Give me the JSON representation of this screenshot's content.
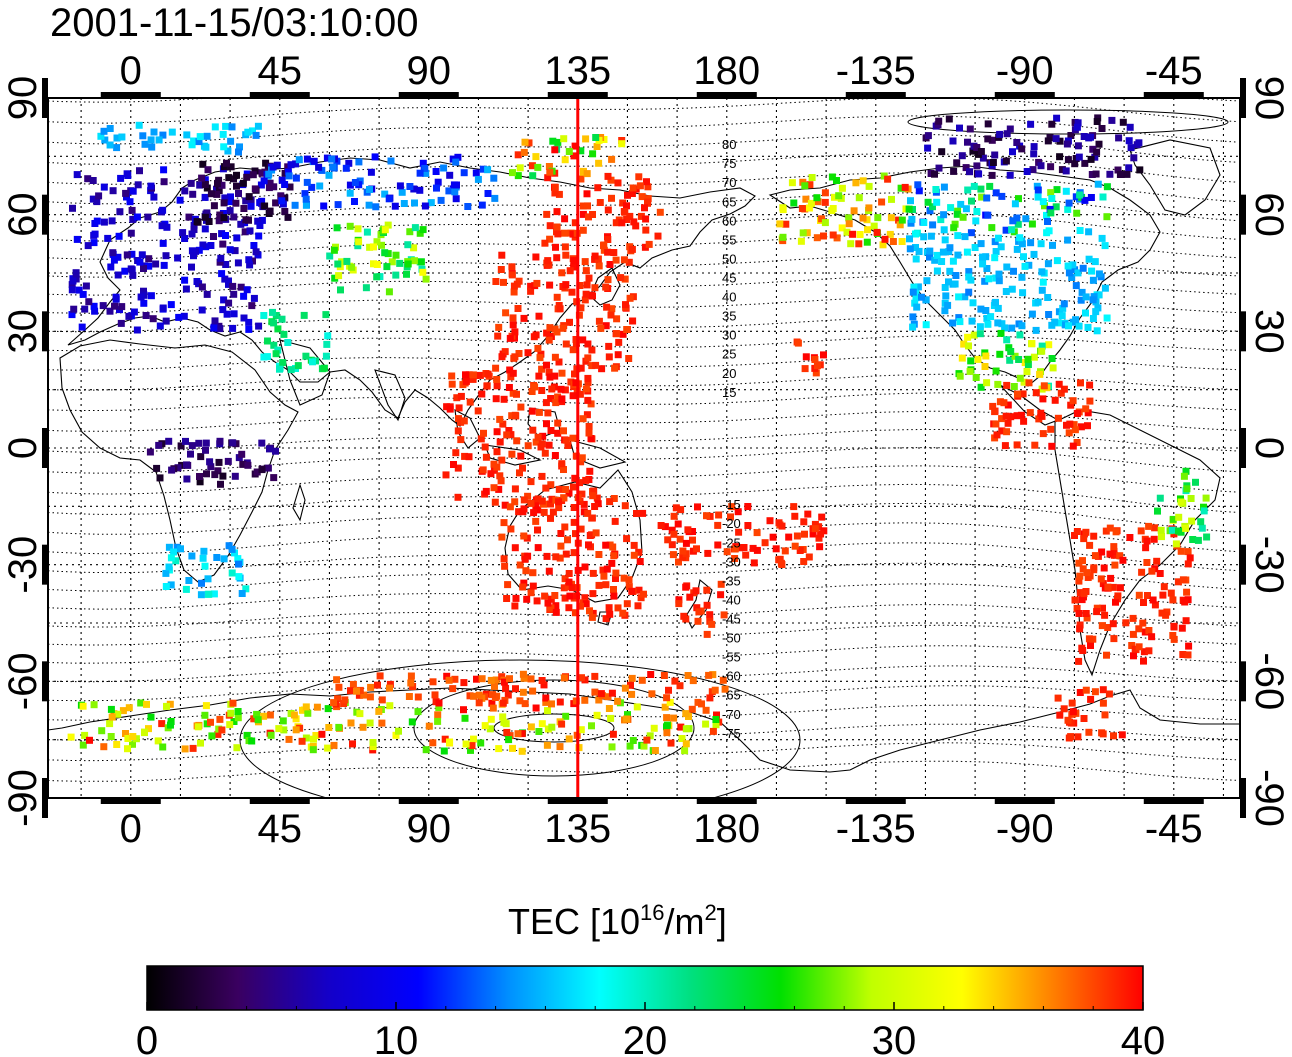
{
  "timestamp": "2001-11-15/03:10:00",
  "map": {
    "projection": "equirectangular",
    "lon_ticks": [
      0,
      45,
      90,
      135,
      180,
      -135,
      -90,
      -45
    ],
    "lat_ticks": [
      90,
      60,
      30,
      0,
      -30,
      -60,
      -90
    ],
    "lon_range": [
      -25,
      335
    ],
    "lat_range": [
      -90,
      90
    ],
    "grid": "dotted every 15 degrees",
    "marker_line_longitude": 135,
    "marker_line_color": "#ff0000",
    "magnetic_latitude_labels": [
      "80",
      "75",
      "70",
      "65",
      "60",
      "55",
      "50",
      "45",
      "40",
      "35",
      "30",
      "25",
      "20",
      "15",
      "-15",
      "-20",
      "-25",
      "-30",
      "-35",
      "-40",
      "-45",
      "-50",
      "-55",
      "-60",
      "-65",
      "-70",
      "-75"
    ]
  },
  "colorbar": {
    "title_prefix": "TEC  [10",
    "title_exp1": "16",
    "title_mid": "/m",
    "title_exp2": "2",
    "title_suffix": "]",
    "min": 0,
    "max": 40,
    "tick_labels": [
      "0",
      "10",
      "20",
      "30",
      "40"
    ],
    "colors": [
      "#000000",
      "#3a0060",
      "#1400c8",
      "#0000ff",
      "#0090ff",
      "#00ffff",
      "#00e080",
      "#00e000",
      "#c0ff00",
      "#ffff00",
      "#ff8000",
      "#ff0000"
    ]
  },
  "tec_regions": [
    {
      "name": "europe",
      "lon": [
        -18,
        40
      ],
      "lat": [
        30,
        72
      ],
      "tec": [
        4,
        11
      ]
    },
    {
      "name": "scandinavia-russia",
      "lon": [
        20,
        50
      ],
      "lat": [
        58,
        75
      ],
      "tec": [
        1,
        4
      ]
    },
    {
      "name": "arctic-north-europe",
      "lon": [
        -10,
        40
      ],
      "lat": [
        76,
        83
      ],
      "tec": [
        14,
        18
      ]
    },
    {
      "name": "central-asia",
      "lon": [
        60,
        90
      ],
      "lat": [
        40,
        58
      ],
      "tec": [
        20,
        33
      ]
    },
    {
      "name": "russia-north",
      "lon": [
        40,
        110
      ],
      "lat": [
        62,
        75
      ],
      "tec": [
        8,
        16
      ]
    },
    {
      "name": "east-asia",
      "lon": [
        110,
        152
      ],
      "lat": [
        20,
        50
      ],
      "tec": [
        38,
        40
      ]
    },
    {
      "name": "japan-north",
      "lon": [
        125,
        160
      ],
      "lat": [
        50,
        70
      ],
      "tec": [
        38,
        40
      ]
    },
    {
      "name": "siberia-arctic",
      "lon": [
        115,
        150
      ],
      "lat": [
        70,
        80
      ],
      "tec": [
        22,
        40
      ]
    },
    {
      "name": "southeast-asia",
      "lon": [
        95,
        140
      ],
      "lat": [
        -15,
        20
      ],
      "tec": [
        38,
        40
      ]
    },
    {
      "name": "australia",
      "lon": [
        112,
        155
      ],
      "lat": [
        -44,
        -12
      ],
      "tec": [
        38,
        40
      ]
    },
    {
      "name": "new-zealand",
      "lon": [
        165,
        180
      ],
      "lat": [
        -48,
        -35
      ],
      "tec": [
        38,
        40
      ]
    },
    {
      "name": "pacific-islands",
      "lon": [
        160,
        210
      ],
      "lat": [
        -30,
        -15
      ],
      "tec": [
        38,
        40
      ]
    },
    {
      "name": "hawaii",
      "lon": [
        -160,
        -150
      ],
      "lat": [
        18,
        28
      ],
      "tec": [
        38,
        40
      ]
    },
    {
      "name": "alaska",
      "lon": [
        -165,
        -125
      ],
      "lat": [
        52,
        70
      ],
      "tec": [
        25,
        40
      ]
    },
    {
      "name": "canada-north",
      "lon": [
        -120,
        -55
      ],
      "lat": [
        70,
        85
      ],
      "tec": [
        1,
        8
      ]
    },
    {
      "name": "canada",
      "lon": [
        -125,
        -65
      ],
      "lat": [
        55,
        68
      ],
      "tec": [
        10,
        28
      ]
    },
    {
      "name": "usa",
      "lon": [
        -125,
        -65
      ],
      "lat": [
        30,
        55
      ],
      "tec": [
        14,
        18
      ]
    },
    {
      "name": "mexico",
      "lon": [
        -110,
        -80
      ],
      "lat": [
        15,
        30
      ],
      "tec": [
        20,
        34
      ]
    },
    {
      "name": "central-america",
      "lon": [
        -100,
        -70
      ],
      "lat": [
        0,
        18
      ],
      "tec": [
        38,
        40
      ]
    },
    {
      "name": "south-america",
      "lon": [
        -75,
        -40
      ],
      "lat": [
        -55,
        -20
      ],
      "tec": [
        38,
        40
      ]
    },
    {
      "name": "brazil-east",
      "lon": [
        -50,
        -35
      ],
      "lat": [
        -25,
        -5
      ],
      "tec": [
        20,
        32
      ]
    },
    {
      "name": "africa-central",
      "lon": [
        5,
        45
      ],
      "lat": [
        -10,
        2
      ],
      "tec": [
        1,
        6
      ]
    },
    {
      "name": "south-africa",
      "lon": [
        10,
        35
      ],
      "lat": [
        -38,
        -25
      ],
      "tec": [
        14,
        20
      ]
    },
    {
      "name": "middle-east",
      "lon": [
        40,
        60
      ],
      "lat": [
        20,
        35
      ],
      "tec": [
        18,
        24
      ]
    },
    {
      "name": "antarctica-coast",
      "lon": [
        -20,
        180
      ],
      "lat": [
        -78,
        -65
      ],
      "tec": [
        25,
        40
      ]
    },
    {
      "name": "antarctica-west",
      "lon": [
        -80,
        -60
      ],
      "lat": [
        -75,
        -62
      ],
      "tec": [
        38,
        40
      ]
    },
    {
      "name": "southern-ocean",
      "lon": [
        60,
        180
      ],
      "lat": [
        -66,
        -58
      ],
      "tec": [
        36,
        40
      ]
    }
  ]
}
